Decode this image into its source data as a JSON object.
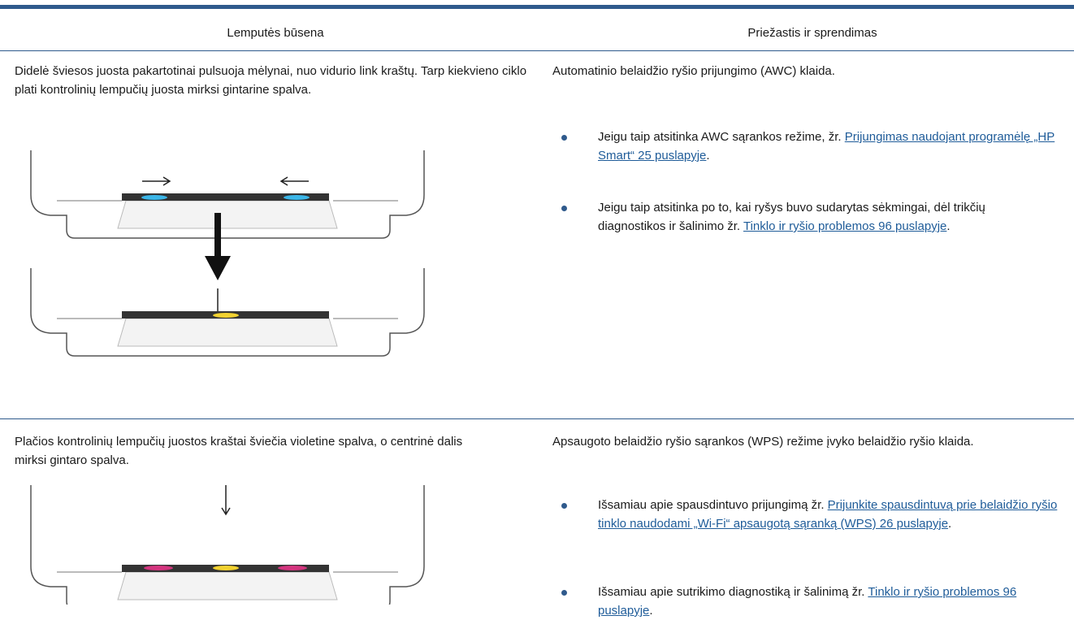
{
  "table": {
    "header": [
      "Lemputės būsena",
      "Priežastis ir sprendimas"
    ],
    "rows": [
      {
        "status": "Didelė šviesos juosta pakartotinai pulsuoja mėlynai, nuo vidurio link kraštų. Tarp kiekvieno ciklo plati kontrolinių lempučių juosta mirksi gintarine spalva.",
        "cause": "Automatinio belaidžio ryšio prijungimo (AWC) klaida.",
        "bullets": [
          {
            "text": "Jeigu taip atsitinka AWC sąrankos režime, žr.",
            "link": "Prijungimas naudojant programėlę „HP Smart“ 25 puslapyje",
            "tail": "."
          },
          {
            "text": "Jeigu taip atsitinka po to, kai ryšys buvo sudarytas sėkmingai, dėl trikčių diagnostikos ir šalinimo žr.",
            "link": "Tinklo ir ryšio problemos 96 puslapyje",
            "tail": "."
          }
        ]
      },
      {
        "status": "Plačios kontrolinių lempučių juostos kraštai šviečia violetine spalva, o centrinė dalis mirksi gintaro spalva.",
        "cause": "Apsaugoto belaidžio ryšio sąrankos (WPS) režime įvyko belaidžio ryšio klaida.",
        "bullets": [
          {
            "text": "Išsamiau apie spausdintuvo prijungimą žr.",
            "link": "Prijunkite spausdintuvą prie belaidžio ryšio tinklo naudodami „Wi-Fi“ apsaugotą sąranką (WPS) 26 puslapyje",
            "tail": "."
          },
          {
            "text": "Išsamiau apie sutrikimo diagnostiką ir šalinimą žr.",
            "link": "Tinklo ir ryšio problemos 96 puslapyje",
            "tail": "."
          }
        ]
      }
    ]
  }
}
